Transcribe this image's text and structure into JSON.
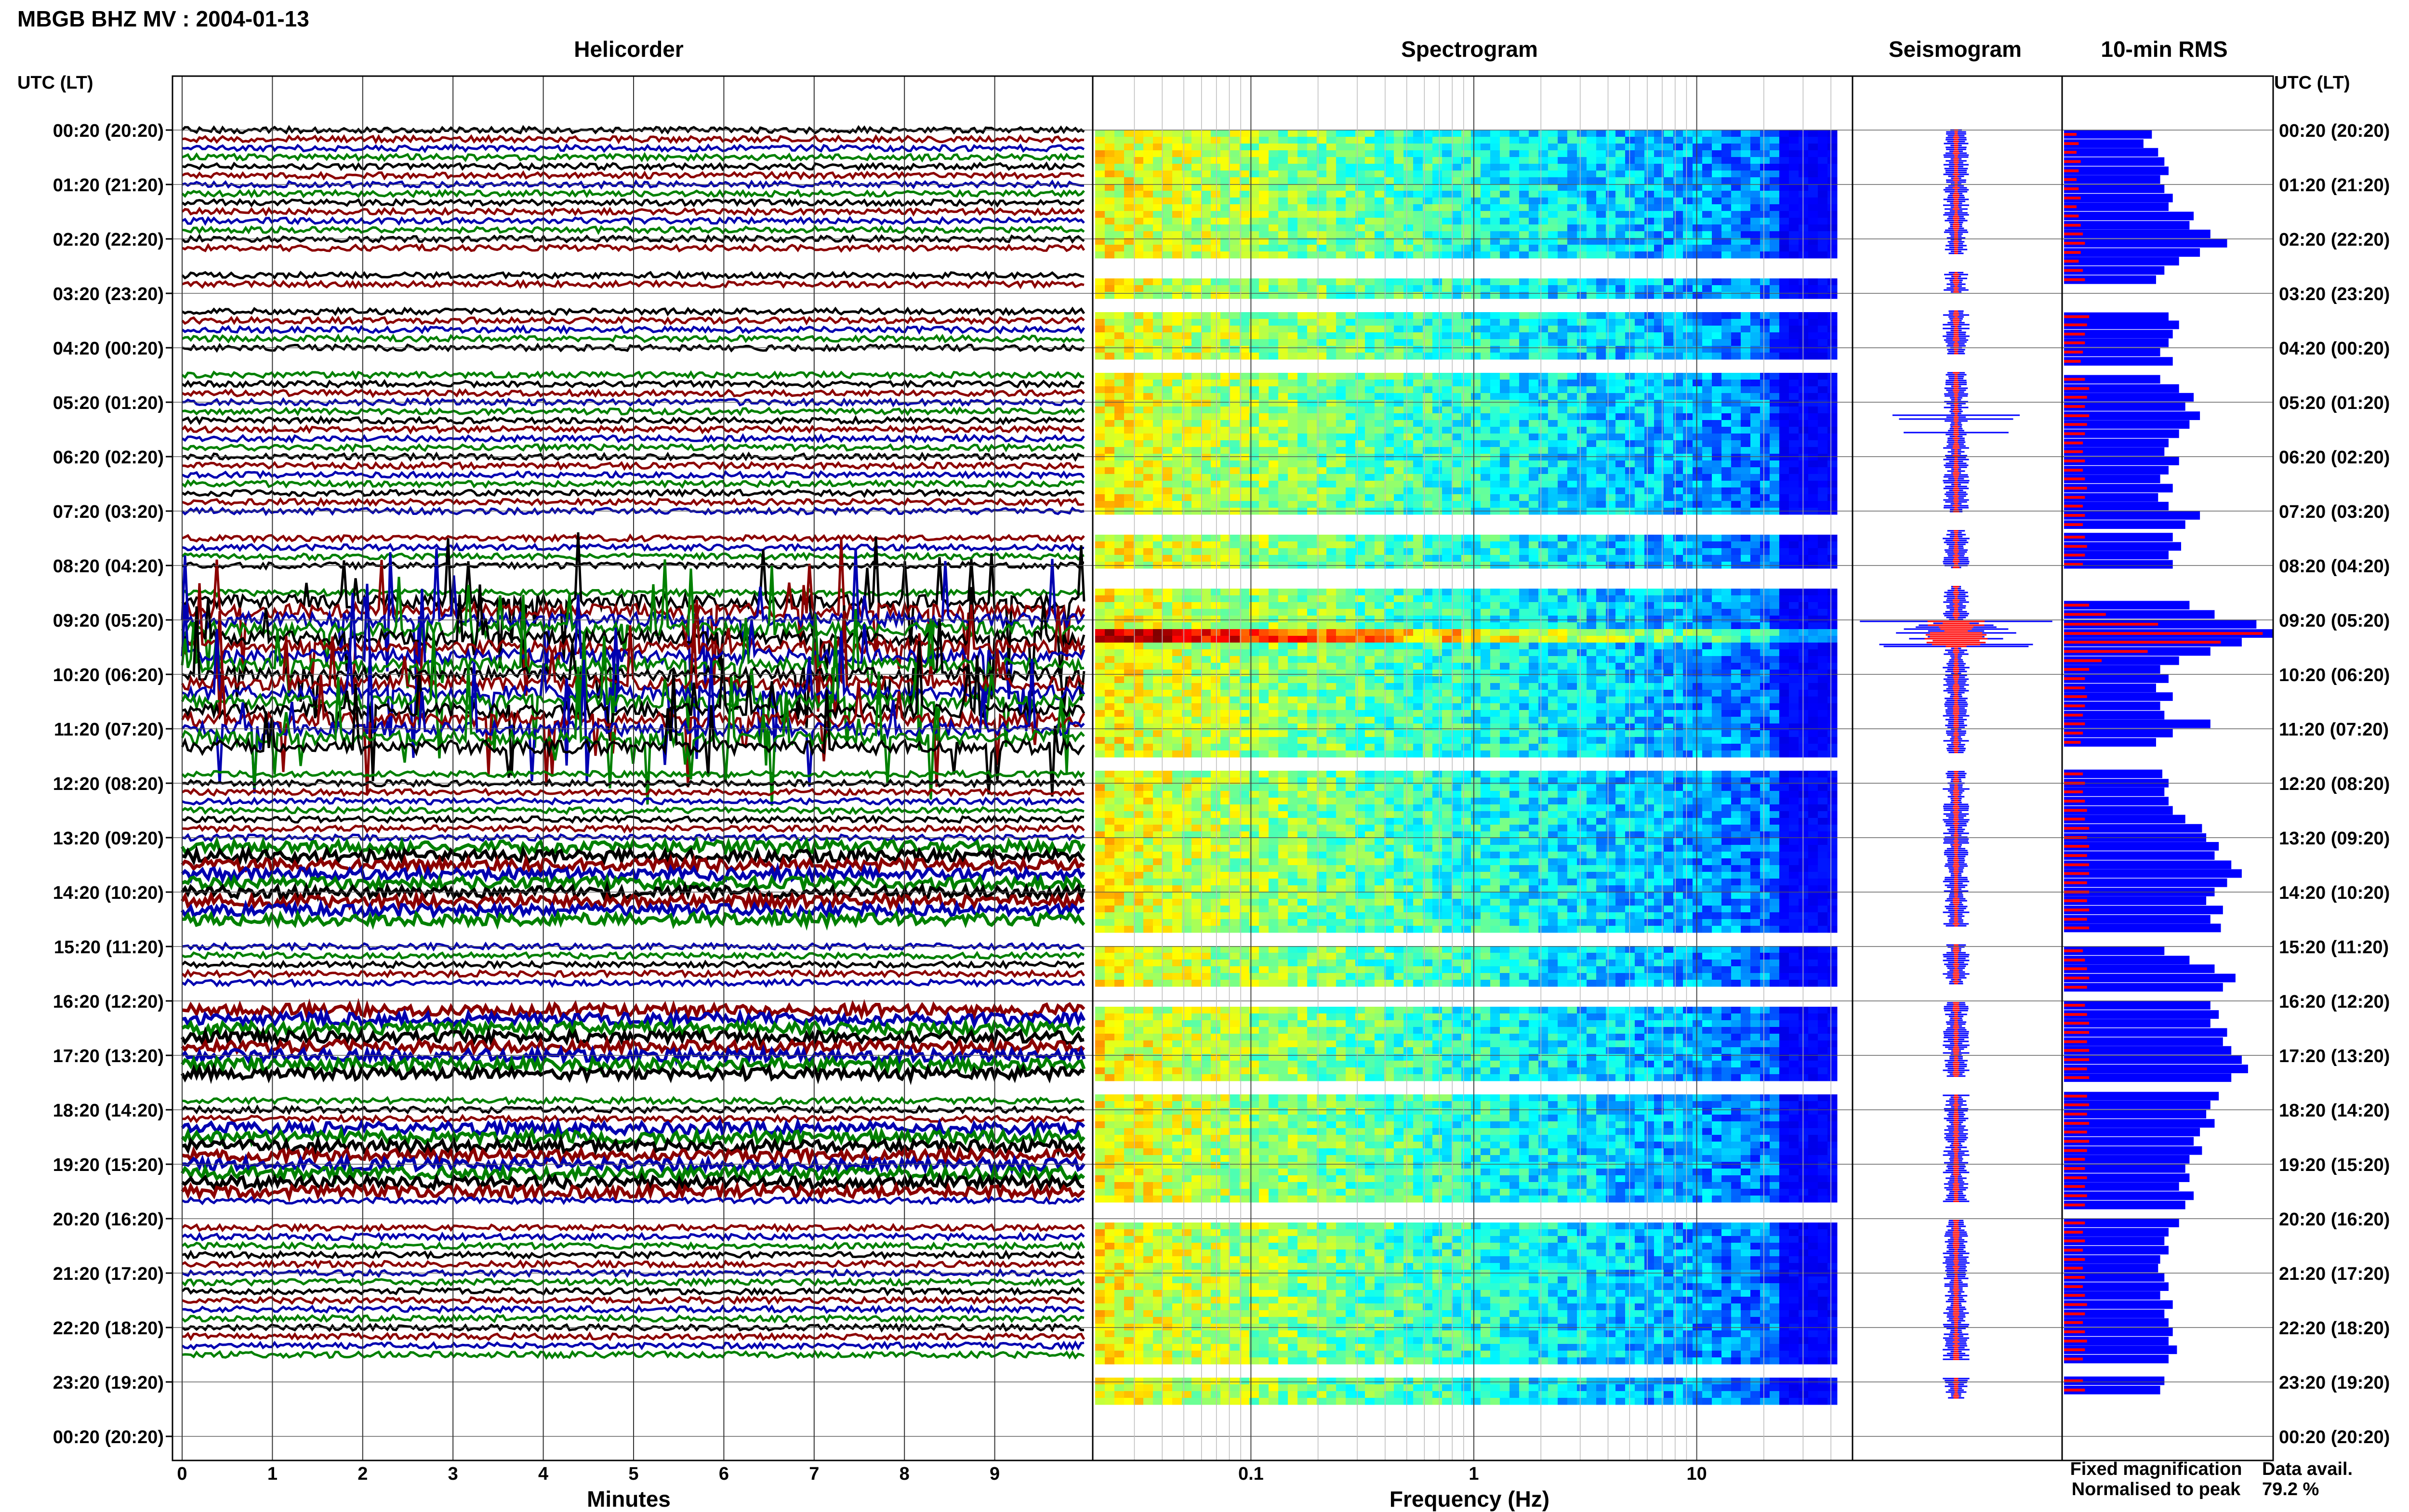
{
  "chart_data": {
    "type": "line",
    "title": "MBGB BHZ MV : 2004-01-13",
    "panels": {
      "helicorder": "Helicorder",
      "spectrogram": "Spectrogram",
      "seismogram": "Seismogram",
      "rms": "10-min RMS"
    },
    "left_axis_title": "UTC (LT)",
    "right_axis_title": "UTC (LT)",
    "hour_labels": [
      "00:20 (20:20)",
      "01:20 (21:20)",
      "02:20 (22:20)",
      "03:20 (23:20)",
      "04:20 (00:20)",
      "05:20 (01:20)",
      "06:20 (02:20)",
      "07:20 (03:20)",
      "08:20 (04:20)",
      "09:20 (05:20)",
      "10:20 (06:20)",
      "11:20 (07:20)",
      "12:20 (08:20)",
      "13:20 (09:20)",
      "14:20 (10:20)",
      "15:20 (11:20)",
      "16:20 (12:20)",
      "17:20 (13:20)",
      "18:20 (14:20)",
      "19:20 (15:20)",
      "20:20 (16:20)",
      "21:20 (17:20)",
      "22:20 (18:20)",
      "23:20 (19:20)",
      "00:20 (20:20)"
    ],
    "helicorder_xlabel": "Minutes",
    "helicorder_xticks": [
      "0",
      "1",
      "2",
      "3",
      "4",
      "5",
      "6",
      "7",
      "8",
      "9"
    ],
    "spectrogram_xlabel": "Frequency (Hz)",
    "spectrogram_xscale": "log",
    "spectrogram_xticks": [
      "0.1",
      "1",
      "10"
    ],
    "spectrogram_xlim": [
      0.02,
      50
    ],
    "trace_colors": [
      "#000000",
      "#8b0000",
      "#0000b0",
      "#008000"
    ],
    "data_gap_hours": [
      2.45,
      3.15,
      4.3,
      7.2,
      8.2,
      11.6,
      14.8,
      15.85,
      17.55,
      19.85,
      22.75
    ],
    "event_period_hours": [
      8.65,
      11.7
    ],
    "rms_rows_per_hour": 6,
    "rms_rows": [
      {
        "hour": 0.0,
        "fixed": 0.42,
        "peak": 0.06
      },
      {
        "hour": 0.17,
        "fixed": 0.38,
        "peak": 0.07
      },
      {
        "hour": 0.33,
        "fixed": 0.45,
        "peak": 0.06
      },
      {
        "hour": 0.5,
        "fixed": 0.48,
        "peak": 0.08
      },
      {
        "hour": 0.67,
        "fixed": 0.5,
        "peak": 0.07
      },
      {
        "hour": 0.83,
        "fixed": 0.46,
        "peak": 0.06
      },
      {
        "hour": 1.0,
        "fixed": 0.48,
        "peak": 0.07
      },
      {
        "hour": 1.17,
        "fixed": 0.52,
        "peak": 0.08
      },
      {
        "hour": 1.33,
        "fixed": 0.5,
        "peak": 0.06
      },
      {
        "hour": 1.5,
        "fixed": 0.62,
        "peak": 0.07
      },
      {
        "hour": 1.67,
        "fixed": 0.6,
        "peak": 0.08
      },
      {
        "hour": 1.83,
        "fixed": 0.7,
        "peak": 0.09
      },
      {
        "hour": 2.0,
        "fixed": 0.78,
        "peak": 0.1
      },
      {
        "hour": 2.17,
        "fixed": 0.65,
        "peak": 0.08
      },
      {
        "hour": 2.33,
        "fixed": 0.55,
        "peak": 0.07
      },
      {
        "hour": 2.5,
        "fixed": 0.48,
        "peak": 0.09
      },
      {
        "hour": 2.67,
        "fixed": 0.44,
        "peak": 0.1
      },
      {
        "hour": 3.35,
        "fixed": 0.5,
        "peak": 0.12
      },
      {
        "hour": 3.5,
        "fixed": 0.55,
        "peak": 0.11
      },
      {
        "hour": 3.67,
        "fixed": 0.52,
        "peak": 0.1
      },
      {
        "hour": 3.83,
        "fixed": 0.5,
        "peak": 0.1
      },
      {
        "hour": 4.0,
        "fixed": 0.46,
        "peak": 0.09
      },
      {
        "hour": 4.17,
        "fixed": 0.52,
        "peak": 0.08
      },
      {
        "hour": 4.5,
        "fixed": 0.46,
        "peak": 0.1
      },
      {
        "hour": 4.67,
        "fixed": 0.55,
        "peak": 0.12
      },
      {
        "hour": 4.83,
        "fixed": 0.62,
        "peak": 0.11
      },
      {
        "hour": 5.0,
        "fixed": 0.58,
        "peak": 0.1
      },
      {
        "hour": 5.17,
        "fixed": 0.65,
        "peak": 0.12
      },
      {
        "hour": 5.33,
        "fixed": 0.6,
        "peak": 0.11
      },
      {
        "hour": 5.5,
        "fixed": 0.55,
        "peak": 0.1
      },
      {
        "hour": 5.67,
        "fixed": 0.5,
        "peak": 0.09
      },
      {
        "hour": 5.83,
        "fixed": 0.48,
        "peak": 0.09
      },
      {
        "hour": 6.0,
        "fixed": 0.55,
        "peak": 0.1
      },
      {
        "hour": 6.17,
        "fixed": 0.5,
        "peak": 0.09
      },
      {
        "hour": 6.33,
        "fixed": 0.46,
        "peak": 0.1
      },
      {
        "hour": 6.5,
        "fixed": 0.52,
        "peak": 0.11
      },
      {
        "hour": 6.67,
        "fixed": 0.45,
        "peak": 0.1
      },
      {
        "hour": 6.83,
        "fixed": 0.5,
        "peak": 0.09
      },
      {
        "hour": 7.0,
        "fixed": 0.65,
        "peak": 0.1
      },
      {
        "hour": 7.17,
        "fixed": 0.58,
        "peak": 0.09
      },
      {
        "hour": 7.4,
        "fixed": 0.52,
        "peak": 0.1
      },
      {
        "hour": 7.57,
        "fixed": 0.56,
        "peak": 0.11
      },
      {
        "hour": 7.73,
        "fixed": 0.5,
        "peak": 0.1
      },
      {
        "hour": 7.9,
        "fixed": 0.52,
        "peak": 0.09
      },
      {
        "hour": 8.65,
        "fixed": 0.6,
        "peak": 0.12
      },
      {
        "hour": 8.82,
        "fixed": 0.72,
        "peak": 0.2
      },
      {
        "hour": 9.0,
        "fixed": 0.92,
        "peak": 0.45
      },
      {
        "hour": 9.17,
        "fixed": 1.0,
        "peak": 0.95
      },
      {
        "hour": 9.33,
        "fixed": 0.85,
        "peak": 0.75
      },
      {
        "hour": 9.5,
        "fixed": 0.7,
        "peak": 0.4
      },
      {
        "hour": 9.67,
        "fixed": 0.55,
        "peak": 0.18
      },
      {
        "hour": 9.83,
        "fixed": 0.46,
        "peak": 0.12
      },
      {
        "hour": 10.0,
        "fixed": 0.5,
        "peak": 0.1
      },
      {
        "hour": 10.17,
        "fixed": 0.44,
        "peak": 0.1
      },
      {
        "hour": 10.33,
        "fixed": 0.52,
        "peak": 0.11
      },
      {
        "hour": 10.5,
        "fixed": 0.46,
        "peak": 0.1
      },
      {
        "hour": 10.67,
        "fixed": 0.48,
        "peak": 0.09
      },
      {
        "hour": 10.83,
        "fixed": 0.7,
        "peak": 0.1
      },
      {
        "hour": 11.0,
        "fixed": 0.52,
        "peak": 0.09
      },
      {
        "hour": 11.17,
        "fixed": 0.44,
        "peak": 0.08
      },
      {
        "hour": 11.75,
        "fixed": 0.47,
        "peak": 0.09
      },
      {
        "hour": 11.92,
        "fixed": 0.5,
        "peak": 0.1
      },
      {
        "hour": 12.08,
        "fixed": 0.48,
        "peak": 0.09
      },
      {
        "hour": 12.25,
        "fixed": 0.5,
        "peak": 0.1
      },
      {
        "hour": 12.42,
        "fixed": 0.52,
        "peak": 0.11
      },
      {
        "hour": 12.58,
        "fixed": 0.58,
        "peak": 0.1
      },
      {
        "hour": 12.75,
        "fixed": 0.66,
        "peak": 0.12
      },
      {
        "hour": 12.92,
        "fixed": 0.68,
        "peak": 0.11
      },
      {
        "hour": 13.08,
        "fixed": 0.74,
        "peak": 0.12
      },
      {
        "hour": 13.25,
        "fixed": 0.72,
        "peak": 0.11
      },
      {
        "hour": 13.42,
        "fixed": 0.8,
        "peak": 0.12
      },
      {
        "hour": 13.58,
        "fixed": 0.85,
        "peak": 0.12
      },
      {
        "hour": 13.75,
        "fixed": 0.78,
        "peak": 0.11
      },
      {
        "hour": 13.92,
        "fixed": 0.72,
        "peak": 0.12
      },
      {
        "hour": 14.08,
        "fixed": 0.68,
        "peak": 0.11
      },
      {
        "hour": 14.25,
        "fixed": 0.76,
        "peak": 0.12
      },
      {
        "hour": 14.42,
        "fixed": 0.7,
        "peak": 0.11
      },
      {
        "hour": 14.58,
        "fixed": 0.75,
        "peak": 0.12
      },
      {
        "hour": 15.0,
        "fixed": 0.48,
        "peak": 0.09
      },
      {
        "hour": 15.17,
        "fixed": 0.6,
        "peak": 0.1
      },
      {
        "hour": 15.33,
        "fixed": 0.72,
        "peak": 0.11
      },
      {
        "hour": 15.5,
        "fixed": 0.82,
        "peak": 0.12
      },
      {
        "hour": 15.67,
        "fixed": 0.76,
        "peak": 0.11
      },
      {
        "hour": 16.0,
        "fixed": 0.7,
        "peak": 0.1
      },
      {
        "hour": 16.17,
        "fixed": 0.74,
        "peak": 0.11
      },
      {
        "hour": 16.33,
        "fixed": 0.7,
        "peak": 0.12
      },
      {
        "hour": 16.5,
        "fixed": 0.78,
        "peak": 0.12
      },
      {
        "hour": 16.67,
        "fixed": 0.76,
        "peak": 0.11
      },
      {
        "hour": 16.83,
        "fixed": 0.8,
        "peak": 0.12
      },
      {
        "hour": 17.0,
        "fixed": 0.85,
        "peak": 0.12
      },
      {
        "hour": 17.17,
        "fixed": 0.88,
        "peak": 0.11
      },
      {
        "hour": 17.33,
        "fixed": 0.8,
        "peak": 0.12
      },
      {
        "hour": 17.67,
        "fixed": 0.74,
        "peak": 0.11
      },
      {
        "hour": 17.83,
        "fixed": 0.7,
        "peak": 0.12
      },
      {
        "hour": 18.0,
        "fixed": 0.68,
        "peak": 0.11
      },
      {
        "hour": 18.17,
        "fixed": 0.72,
        "peak": 0.12
      },
      {
        "hour": 18.33,
        "fixed": 0.65,
        "peak": 0.11
      },
      {
        "hour": 18.5,
        "fixed": 0.62,
        "peak": 0.12
      },
      {
        "hour": 18.67,
        "fixed": 0.66,
        "peak": 0.11
      },
      {
        "hour": 18.83,
        "fixed": 0.6,
        "peak": 0.1
      },
      {
        "hour": 19.0,
        "fixed": 0.58,
        "peak": 0.1
      },
      {
        "hour": 19.17,
        "fixed": 0.6,
        "peak": 0.11
      },
      {
        "hour": 19.33,
        "fixed": 0.55,
        "peak": 0.1
      },
      {
        "hour": 19.5,
        "fixed": 0.62,
        "peak": 0.11
      },
      {
        "hour": 19.67,
        "fixed": 0.58,
        "peak": 0.1
      },
      {
        "hour": 20.0,
        "fixed": 0.55,
        "peak": 0.1
      },
      {
        "hour": 20.17,
        "fixed": 0.5,
        "peak": 0.09
      },
      {
        "hour": 20.33,
        "fixed": 0.48,
        "peak": 0.1
      },
      {
        "hour": 20.5,
        "fixed": 0.5,
        "peak": 0.09
      },
      {
        "hour": 20.67,
        "fixed": 0.46,
        "peak": 0.1
      },
      {
        "hour": 20.83,
        "fixed": 0.45,
        "peak": 0.09
      },
      {
        "hour": 21.0,
        "fixed": 0.48,
        "peak": 0.1
      },
      {
        "hour": 21.17,
        "fixed": 0.5,
        "peak": 0.09
      },
      {
        "hour": 21.33,
        "fixed": 0.46,
        "peak": 0.1
      },
      {
        "hour": 21.5,
        "fixed": 0.52,
        "peak": 0.11
      },
      {
        "hour": 21.67,
        "fixed": 0.48,
        "peak": 0.1
      },
      {
        "hour": 21.83,
        "fixed": 0.5,
        "peak": 0.09
      },
      {
        "hour": 22.0,
        "fixed": 0.52,
        "peak": 0.1
      },
      {
        "hour": 22.17,
        "fixed": 0.5,
        "peak": 0.11
      },
      {
        "hour": 22.33,
        "fixed": 0.54,
        "peak": 0.1
      },
      {
        "hour": 22.5,
        "fixed": 0.5,
        "peak": 0.09
      },
      {
        "hour": 22.9,
        "fixed": 0.48,
        "peak": 0.09
      },
      {
        "hour": 23.07,
        "fixed": 0.46,
        "peak": 0.1
      }
    ],
    "legend": {
      "fixed_label": "Fixed magnification",
      "fixed_color": "#0000ff",
      "peak_label": "Normalised to peak",
      "peak_color": "#ff0000"
    },
    "data_availability": {
      "label": "Data avail.",
      "value": "79.2 %"
    }
  }
}
